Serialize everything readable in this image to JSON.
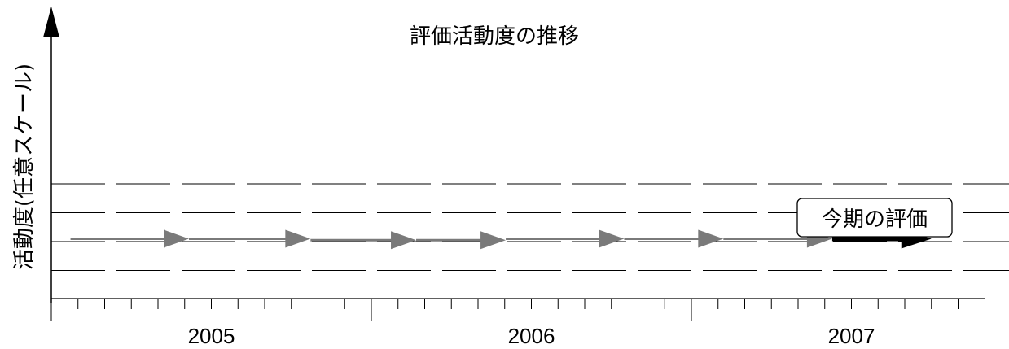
{
  "chart_data": {
    "type": "line",
    "title": "評価活動度の推移",
    "ylabel": "活動度(任意スケール)",
    "xlabel": "",
    "x_ticks": [
      "2005",
      "2006",
      "2007"
    ],
    "series": [
      {
        "segments": [
          {
            "x0": 2004.06,
            "x1": 2004.43,
            "y": 2.1
          },
          {
            "x0": 2004.43,
            "x1": 2004.81,
            "y": 2.1
          },
          {
            "x0": 2004.81,
            "x1": 2005.14,
            "y": 2.05
          },
          {
            "x0": 2005.14,
            "x1": 2005.42,
            "y": 2.05
          },
          {
            "x0": 2005.42,
            "x1": 2005.79,
            "y": 2.1
          },
          {
            "x0": 2005.79,
            "x1": 2006.1,
            "y": 2.1
          },
          {
            "x0": 2006.1,
            "x1": 2006.44,
            "y": 2.1
          }
        ]
      }
    ],
    "current": {
      "label": "今期の評価",
      "x0": 2006.44,
      "x1": 2006.75,
      "y": 2.1
    },
    "gridlines": [
      {
        "y": 5,
        "style": "long-dash"
      },
      {
        "y": 4,
        "style": "long-dash"
      },
      {
        "y": 3,
        "style": "long-dash"
      },
      {
        "y": 2,
        "style": "long-dash"
      },
      {
        "y": 1,
        "style": "long-dash"
      }
    ],
    "colors": {
      "past": "#7a7a7a",
      "current": "#000000",
      "axis": "#000000"
    }
  }
}
